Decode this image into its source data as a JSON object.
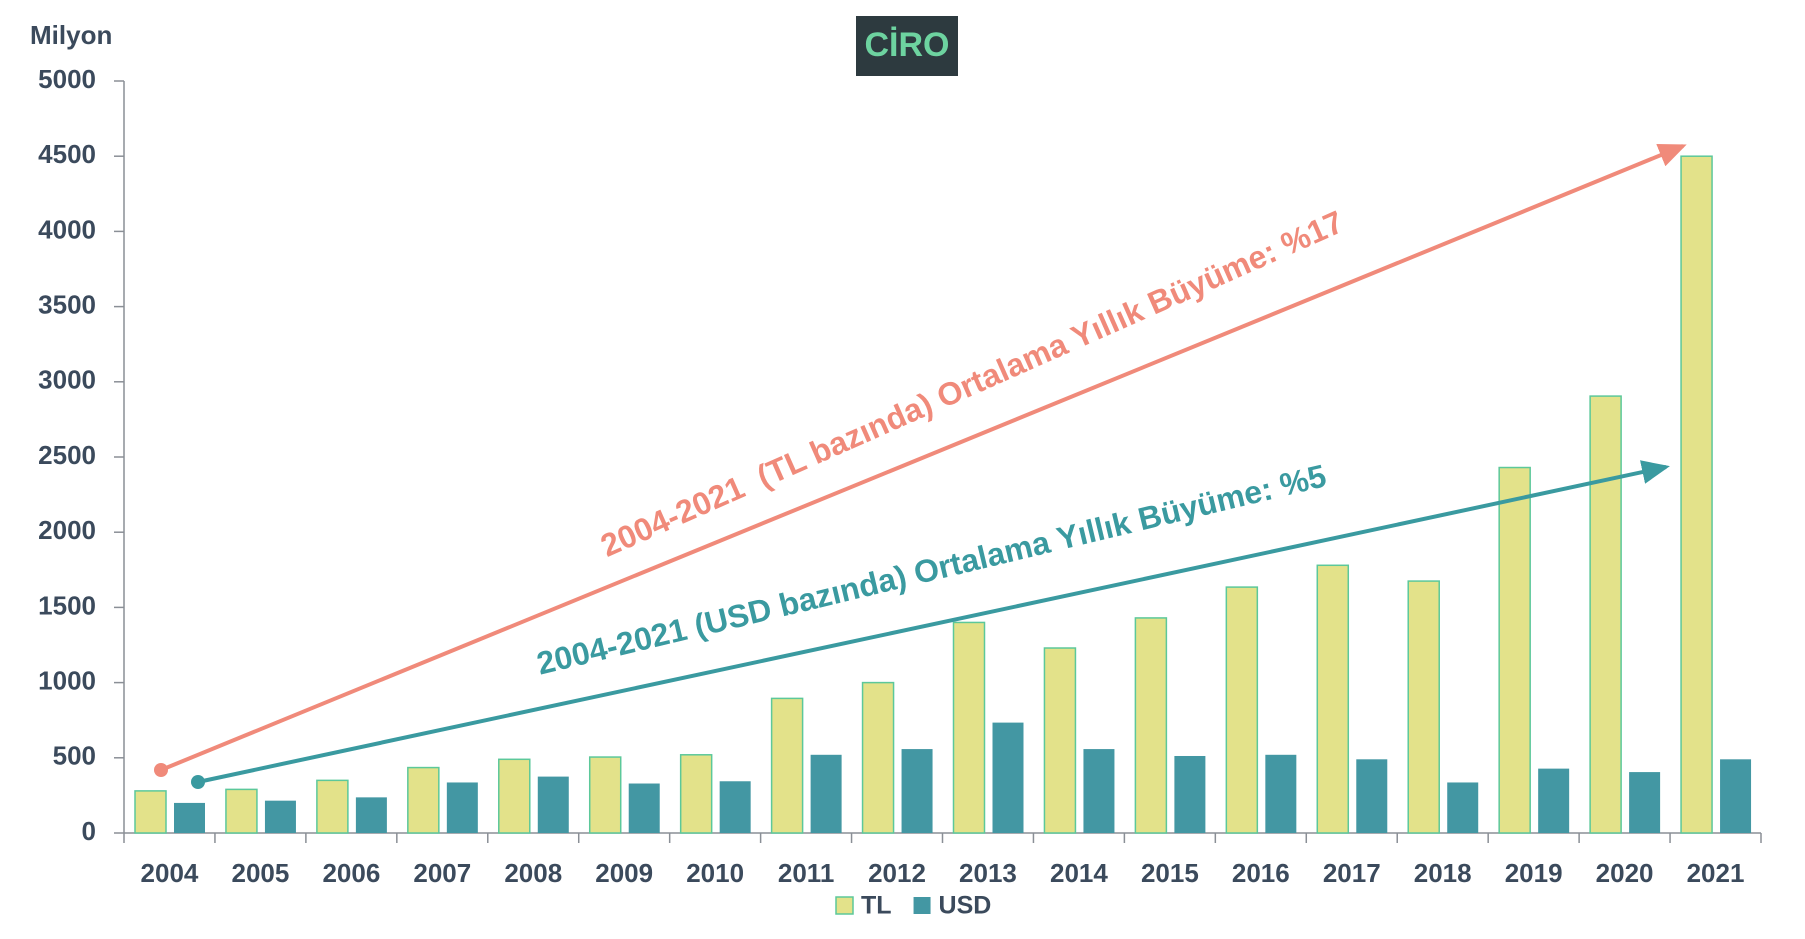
{
  "chart_data": {
    "type": "bar",
    "title": "CİRO",
    "y_axis_label": "Milyon",
    "categories": [
      "2004",
      "2005",
      "2006",
      "2007",
      "2008",
      "2009",
      "2010",
      "2011",
      "2012",
      "2013",
      "2014",
      "2015",
      "2016",
      "2017",
      "2018",
      "2019",
      "2020",
      "2021"
    ],
    "series": [
      {
        "name": "TL",
        "color": "#e3e28a",
        "values": [
          280,
          290,
          350,
          435,
          490,
          505,
          520,
          895,
          1000,
          1400,
          1230,
          1430,
          1635,
          1780,
          1675,
          2430,
          2905,
          4500
        ]
      },
      {
        "name": "USD",
        "color": "#4397a3",
        "values": [
          200,
          215,
          237,
          336,
          375,
          329,
          344,
          520,
          558,
          734,
          558,
          512,
          520,
          490,
          336,
          428,
          405,
          490
        ]
      }
    ],
    "ylim": [
      0,
      5000
    ],
    "yticks": [
      0,
      500,
      1000,
      1500,
      2000,
      2500,
      3000,
      3500,
      4000,
      4500,
      5000
    ],
    "annotations": [
      "2004-2021  (TL bazında) Ortalama Yıllık Büyüme: %17",
      "2004-2021 (USD bazında) Ortalama Yıllık Büyüme: %5"
    ],
    "legend": "bottom"
  }
}
